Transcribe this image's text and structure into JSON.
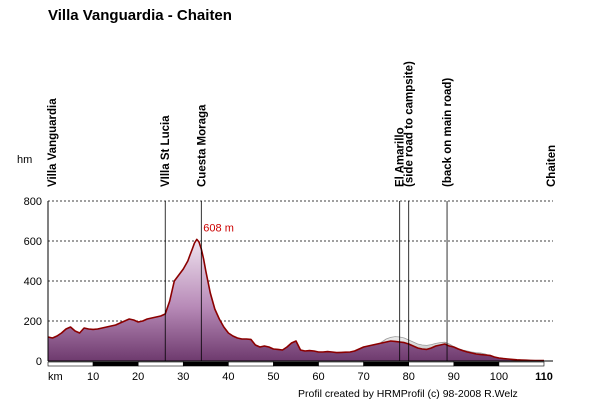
{
  "chart_data": {
    "type": "area",
    "title": "Villa Vanguardia - Chaiten",
    "xlabel": "km",
    "ylabel": "hm",
    "xlim": [
      0,
      112
    ],
    "ylim": [
      0,
      800
    ],
    "x_ticks": [
      "10",
      "20",
      "30",
      "40",
      "50",
      "60",
      "70",
      "80",
      "90",
      "100",
      "110"
    ],
    "x_tick_values": [
      10,
      20,
      30,
      40,
      50,
      60,
      70,
      80,
      90,
      100,
      110
    ],
    "y_ticks": [
      "0",
      "200",
      "400",
      "600",
      "800"
    ],
    "y_tick_values": [
      0,
      200,
      400,
      600,
      800
    ],
    "grid": "horizontal dashed",
    "series": [
      {
        "x": [
          0,
          1,
          2,
          3,
          4,
          5,
          6,
          7,
          8,
          9,
          10,
          11,
          12,
          13,
          14,
          15,
          16,
          17,
          18,
          19,
          20,
          21,
          22,
          23,
          24,
          25,
          26,
          27,
          28,
          29,
          30,
          31,
          31.5,
          32,
          32.5,
          33,
          33.5,
          34,
          34.5,
          35,
          36,
          37,
          38,
          39,
          40,
          41,
          42,
          43,
          44,
          45,
          46,
          47,
          48,
          49,
          50,
          51,
          52,
          53,
          54,
          55,
          56,
          57,
          58,
          59,
          60,
          61,
          62,
          63,
          64,
          65,
          66,
          67,
          68,
          69,
          70,
          71,
          72,
          73,
          74,
          75,
          76,
          77,
          78,
          79,
          80,
          81,
          82,
          83,
          84,
          85,
          86,
          87,
          88,
          89,
          90,
          91,
          92,
          93,
          94,
          95,
          96,
          97,
          98,
          99,
          100,
          101,
          102,
          103,
          104,
          105,
          106,
          107,
          108,
          109,
          110
        ],
        "values": [
          120,
          115,
          125,
          140,
          160,
          170,
          150,
          140,
          165,
          160,
          158,
          160,
          165,
          170,
          175,
          180,
          190,
          200,
          210,
          205,
          195,
          200,
          210,
          215,
          220,
          225,
          235,
          300,
          400,
          430,
          460,
          500,
          530,
          560,
          590,
          608,
          595,
          560,
          510,
          450,
          340,
          260,
          210,
          170,
          140,
          125,
          115,
          110,
          110,
          108,
          80,
          70,
          75,
          70,
          60,
          58,
          55,
          70,
          90,
          100,
          55,
          50,
          52,
          50,
          45,
          45,
          47,
          45,
          42,
          43,
          44,
          45,
          50,
          60,
          70,
          75,
          80,
          85,
          90,
          95,
          100,
          98,
          95,
          92,
          85,
          75,
          65,
          60,
          58,
          65,
          75,
          80,
          85,
          75,
          70,
          60,
          52,
          45,
          40,
          35,
          32,
          30,
          28,
          20,
          15,
          12,
          10,
          8,
          6,
          5,
          4,
          3,
          2,
          2,
          2
        ],
        "color": "#7a3f7a"
      }
    ],
    "side_road": {
      "x": [
        71,
        72,
        73,
        74,
        75,
        76,
        77,
        78,
        79,
        80,
        81,
        82,
        83,
        84,
        85,
        86,
        87,
        88,
        89,
        90,
        91,
        92,
        93,
        94,
        95,
        96,
        97,
        98,
        99,
        100
      ],
      "values": [
        50,
        60,
        75,
        95,
        110,
        118,
        122,
        120,
        115,
        105,
        95,
        85,
        80,
        78,
        82,
        88,
        92,
        94,
        85,
        72,
        62,
        55,
        50,
        45,
        42,
        40,
        35,
        25,
        18,
        12
      ],
      "color": "#b7b7b7"
    },
    "peak_label": "608 m",
    "peak_value": 608,
    "peak_x": 34,
    "markers": [
      {
        "label": "Villa Vanguardia",
        "x": 0
      },
      {
        "label": "VIlla St Lucia",
        "x": 26
      },
      {
        "label": "Cuesta Moraga",
        "x": 34
      },
      {
        "label": "El Amarillo",
        "x": 78
      },
      {
        "label": "(side road to campsite)",
        "x": 80
      },
      {
        "label": "(back on main road)",
        "x": 88.5
      },
      {
        "label": "Chaiten",
        "x": 113
      }
    ],
    "credit": "Profil created by HRMProfil (c) 98-2008 R.Welz",
    "colors": {
      "fill_top": "#e6d2e6",
      "fill_bottom": "#7a3f7a",
      "line": "#8b0000",
      "side_fill": "#cfcfcf"
    }
  }
}
